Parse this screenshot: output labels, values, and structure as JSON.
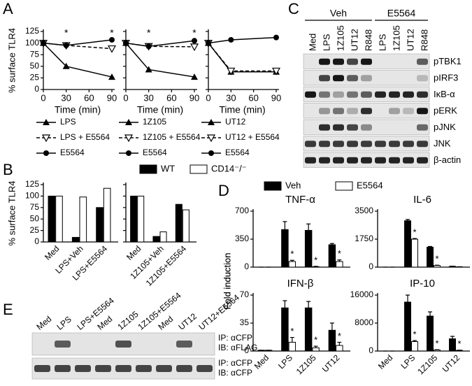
{
  "panel_labels": [
    "A",
    "B",
    "C",
    "D",
    "E"
  ],
  "chart_data": [
    {
      "type": "line",
      "y_label": "% surface TLR4",
      "x_label": "Time (min)",
      "x": [
        0,
        30,
        90
      ],
      "xlim": [
        0,
        90
      ],
      "xticks": [
        0,
        30,
        60,
        90
      ],
      "ylim": [
        0,
        125
      ],
      "yticks": [
        0,
        25,
        50,
        75,
        100,
        125
      ],
      "ytick_labels": true,
      "annotations": [
        null,
        "*",
        "*"
      ],
      "series": [
        {
          "name": "LPS",
          "color": "#000000",
          "marker": "triangle",
          "dashed": false,
          "values": [
            100,
            50,
            27
          ]
        },
        {
          "name": "LPS + E5564",
          "color": "#000000",
          "marker": "open-triangle",
          "dashed": true,
          "values": [
            100,
            95,
            88
          ]
        },
        {
          "name": "E5564",
          "color": "#000000",
          "marker": "circle",
          "dashed": false,
          "values": [
            100,
            95,
            107
          ]
        }
      ]
    },
    {
      "type": "line",
      "x_label": "Time (min)",
      "x": [
        0,
        30,
        90
      ],
      "xlim": [
        0,
        90
      ],
      "xticks": [
        0,
        30,
        60,
        90
      ],
      "ylim": [
        0,
        125
      ],
      "yticks": [
        0,
        25,
        50,
        75,
        100,
        125
      ],
      "ytick_labels": false,
      "annotations": [
        null,
        "*",
        "*"
      ],
      "series": [
        {
          "name": "1Z105",
          "color": "#000000",
          "marker": "triangle",
          "dashed": false,
          "values": [
            100,
            43,
            27
          ]
        },
        {
          "name": "1Z105 + E5564",
          "color": "#000000",
          "marker": "open-triangle",
          "dashed": true,
          "values": [
            100,
            93,
            92
          ]
        },
        {
          "name": "E5564",
          "color": "#000000",
          "marker": "circle",
          "dashed": false,
          "values": [
            100,
            93,
            105
          ]
        }
      ]
    },
    {
      "type": "line",
      "x_label": "Time (min)",
      "x": [
        0,
        30,
        90
      ],
      "xlim": [
        0,
        90
      ],
      "xticks": [
        0,
        30,
        60,
        90
      ],
      "ylim": [
        0,
        125
      ],
      "yticks": [
        0,
        25,
        50,
        75,
        100,
        125
      ],
      "ytick_labels": false,
      "series": [
        {
          "name": "UT12",
          "color": "#000000",
          "marker": "triangle",
          "dashed": false,
          "values": [
            100,
            38,
            38
          ]
        },
        {
          "name": "UT12 + E5564",
          "color": "#000000",
          "marker": "open-triangle",
          "dashed": true,
          "values": [
            100,
            40,
            40
          ]
        },
        {
          "name": "E5564",
          "color": "#000000",
          "marker": "circle",
          "dashed": false,
          "values": [
            100,
            107,
            112
          ]
        }
      ]
    },
    {
      "type": "bar",
      "y_label": "% surface TLR4",
      "categories": [
        "Med",
        "LPS+Veh",
        "LPS+E5564"
      ],
      "ylim": [
        0,
        125
      ],
      "yticks": [
        0,
        25,
        50,
        75,
        100,
        125
      ],
      "ytick_labels": true,
      "series": [
        {
          "name": "WT",
          "color": "#000000",
          "values": [
            100,
            10,
            75
          ]
        },
        {
          "name": "CD14⁻/⁻",
          "color": "#ffffff",
          "values": [
            100,
            98,
            117
          ]
        }
      ]
    },
    {
      "type": "bar",
      "categories": [
        "Med",
        "1Z105+Veh",
        "1Z105+E5564"
      ],
      "ylim": [
        0,
        125
      ],
      "yticks": [
        0,
        25,
        50,
        75,
        100,
        125
      ],
      "ytick_labels": false,
      "series": [
        {
          "color": "#000000",
          "values": [
            100,
            12,
            82
          ]
        },
        {
          "color": "#ffffff",
          "values": [
            100,
            22,
            70
          ]
        }
      ]
    },
    {
      "type": "bar",
      "title": "TNF-α",
      "y_label": "Fold induction",
      "categories": [
        null,
        null,
        null,
        null
      ],
      "ylim": [
        0,
        700
      ],
      "yticks": [
        0,
        350,
        700
      ],
      "ytick_labels": true,
      "series": [
        {
          "name": "Veh",
          "color": "#000000",
          "values": [
            0,
            470,
            460,
            280
          ],
          "errors": [
            0,
            100,
            80,
            15
          ]
        },
        {
          "name": "E5564",
          "color": "#ffffff",
          "values": [
            0,
            70,
            5,
            70
          ],
          "errors": [
            0,
            15,
            5,
            20
          ],
          "annotations": [
            null,
            "*",
            "*",
            "*"
          ]
        }
      ]
    },
    {
      "type": "bar",
      "title": "IL-6",
      "categories": [
        null,
        null,
        null,
        null
      ],
      "ylim": [
        0,
        3500
      ],
      "yticks": [
        0,
        1750,
        3500
      ],
      "ytick_labels": true,
      "series": [
        {
          "color": "#000000",
          "values": [
            0,
            2900,
            1250,
            50
          ],
          "errors": [
            0,
            80,
            40,
            10
          ]
        },
        {
          "color": "#ffffff",
          "values": [
            0,
            1750,
            100,
            20
          ],
          "errors": [
            0,
            40,
            20,
            5
          ],
          "annotations": [
            null,
            "*",
            "*",
            null
          ]
        }
      ]
    },
    {
      "type": "bar",
      "title": "IFN-β",
      "y_label": "Fold induction",
      "categories": [
        "Med",
        "LPS",
        "1Z105",
        "UT12"
      ],
      "ylim": [
        0,
        70
      ],
      "yticks": [
        0,
        35,
        70
      ],
      "ytick_labels": true,
      "series": [
        {
          "color": "#000000",
          "values": [
            1,
            54,
            54,
            26
          ],
          "errors": [
            0,
            9,
            8,
            9
          ]
        },
        {
          "color": "#ffffff",
          "values": [
            1,
            11,
            4,
            7
          ],
          "errors": [
            0,
            6,
            2,
            4
          ],
          "annotations": [
            null,
            "*",
            "*",
            "*"
          ]
        }
      ]
    },
    {
      "type": "bar",
      "title": "IP-10",
      "categories": [
        "Med",
        "LPS",
        "1Z105",
        "UT12"
      ],
      "ylim": [
        0,
        16000
      ],
      "yticks": [
        0,
        8000,
        16000
      ],
      "ytick_labels": true,
      "series": [
        {
          "color": "#000000",
          "values": [
            0,
            14000,
            10000,
            3500
          ],
          "errors": [
            0,
            2000,
            1200,
            700
          ]
        },
        {
          "color": "#ffffff",
          "values": [
            0,
            2700,
            300,
            200
          ],
          "errors": [
            0,
            300,
            80,
            60
          ],
          "annotations": [
            null,
            "*",
            "*",
            "*"
          ]
        }
      ]
    }
  ],
  "blot_c": {
    "groups": [
      "Veh",
      "E5564"
    ],
    "lanes": [
      "Med",
      "LPS",
      "1Z105",
      "UT12",
      "R848",
      "LPS",
      "1Z105",
      "UT12",
      "R848"
    ],
    "rows": [
      "pTBK1",
      "pIRF3",
      "IκB-α",
      "pERK",
      "pJNK",
      "JNK",
      "β-actin"
    ]
  },
  "blot_e": {
    "lanes": [
      "Med",
      "LPS",
      "LPS+E5564",
      "Med",
      "1Z105",
      "1Z105+E5564",
      "Med",
      "UT12",
      "UT12+E5564"
    ],
    "rows": [
      [
        "IP: αCFP",
        "IB: αFLAG"
      ],
      [
        "IP: αCFP",
        "IB: αCFP"
      ]
    ]
  }
}
